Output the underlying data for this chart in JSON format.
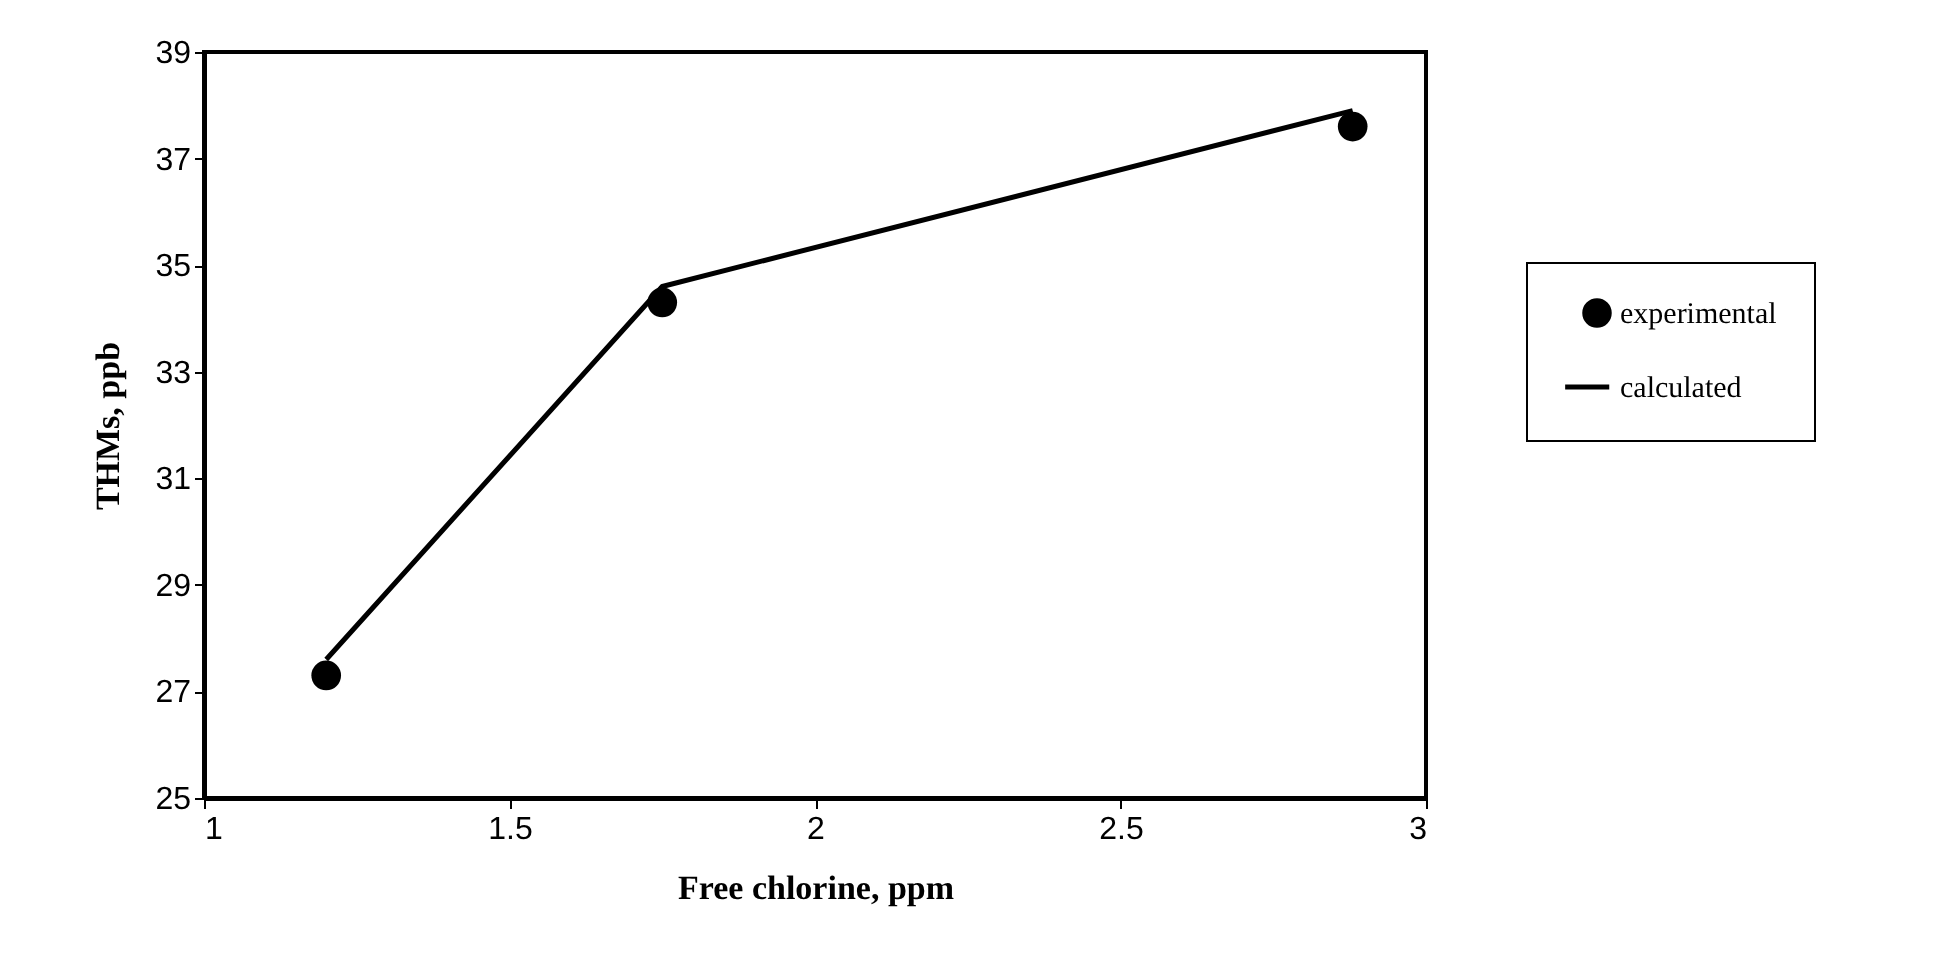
{
  "chart_data": {
    "type": "scatter",
    "xlabel": "Free chlorine, ppm",
    "ylabel": "THMs, ppb",
    "xlim": [
      1,
      3
    ],
    "xticks": [
      1,
      1.5,
      2,
      2.5,
      3
    ],
    "ylim": [
      25,
      39
    ],
    "yticks": [
      25,
      27,
      29,
      31,
      33,
      35,
      37,
      39
    ],
    "grid": false,
    "legend": "right",
    "series": [
      {
        "name": "experimental",
        "marker": "circle",
        "color": "#000000",
        "x": [
          1.2,
          1.75,
          2.88
        ],
        "values": [
          27.3,
          34.3,
          37.6
        ]
      },
      {
        "name": "calculated",
        "type": "line",
        "marker": "none",
        "line_style": "solid",
        "color": "#000000",
        "x": [
          1.2,
          1.75,
          2.88
        ],
        "values": [
          27.6,
          34.6,
          37.9
        ]
      }
    ]
  }
}
